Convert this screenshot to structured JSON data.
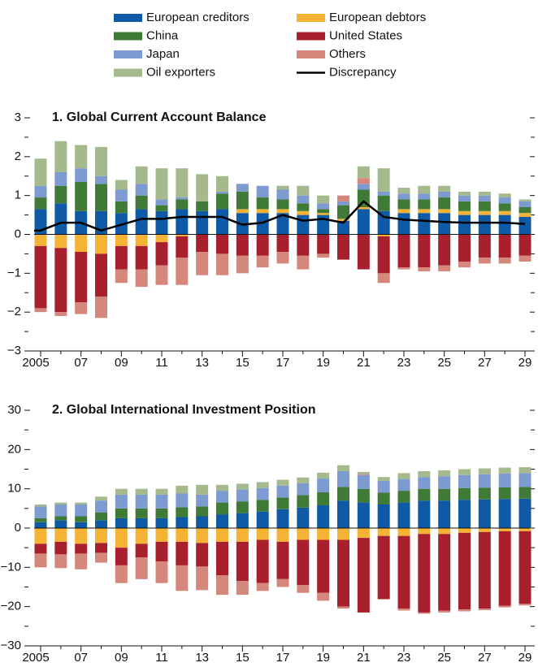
{
  "chart_data": [
    {
      "type": "bar",
      "stacked": true,
      "title": "1. Global Current Account Balance",
      "categories": [
        "2005",
        null,
        "07",
        null,
        "09",
        null,
        "11",
        null,
        "13",
        null,
        "15",
        null,
        "17",
        null,
        "19",
        null,
        "21",
        null,
        "23",
        null,
        "25",
        null,
        "27",
        null,
        "29"
      ],
      "ylim": [
        -3,
        3
      ],
      "yticks": [
        {
          "value": -3,
          "label": "−3"
        },
        {
          "value": -2,
          "label": "−2"
        },
        {
          "value": -1,
          "label": "−1"
        },
        0,
        1,
        2,
        3
      ],
      "series": [
        {
          "name": "European creditors",
          "color": "#0f5aa6",
          "values": [
            0.65,
            0.8,
            0.6,
            0.6,
            0.55,
            0.65,
            0.6,
            0.65,
            0.6,
            0.65,
            0.55,
            0.55,
            0.55,
            0.5,
            0.5,
            0.35,
            0.65,
            0.6,
            0.55,
            0.55,
            0.55,
            0.5,
            0.5,
            0.5,
            0.45
          ]
        },
        {
          "name": "European debtors",
          "color": "#f5b335",
          "values": [
            -0.3,
            -0.35,
            -0.45,
            -0.5,
            -0.3,
            -0.3,
            -0.2,
            -0.05,
            0,
            0,
            0.1,
            0.1,
            0.1,
            0.1,
            0.05,
            0.05,
            0.05,
            -0.05,
            0.1,
            0.1,
            0.1,
            0.1,
            0.1,
            0.1,
            0.1
          ]
        },
        {
          "name": "China",
          "color": "#3f7a36",
          "values": [
            0.3,
            0.45,
            0.75,
            0.7,
            0.3,
            0.35,
            0.15,
            0.25,
            0.25,
            0.4,
            0.45,
            0.3,
            0.25,
            0.2,
            0.1,
            0.35,
            0.45,
            0.4,
            0.25,
            0.25,
            0.3,
            0.25,
            0.25,
            0.2,
            0.15
          ]
        },
        {
          "name": "United States",
          "color": "#a8202e",
          "values": [
            -1.6,
            -1.65,
            -1.3,
            -1.1,
            -0.6,
            -0.6,
            -0.6,
            -0.55,
            -0.45,
            -0.5,
            -0.55,
            -0.55,
            -0.45,
            -0.55,
            -0.5,
            -0.65,
            -0.9,
            -0.95,
            -0.85,
            -0.85,
            -0.8,
            -0.7,
            -0.6,
            -0.6,
            -0.55
          ]
        },
        {
          "name": "Japan",
          "color": "#7d9ad1",
          "values": [
            0.3,
            0.35,
            0.35,
            0.2,
            0.3,
            0.3,
            0.15,
            0.05,
            0,
            0.05,
            0.2,
            0.3,
            0.25,
            0.2,
            0.15,
            0.1,
            0.15,
            0.1,
            0.15,
            0.15,
            0.15,
            0.15,
            0.15,
            0.15,
            0.15
          ]
        },
        {
          "name": "Others",
          "color": "#d4877a",
          "values": [
            -0.1,
            -0.1,
            -0.3,
            -0.55,
            -0.35,
            -0.45,
            -0.5,
            -0.7,
            -0.6,
            -0.55,
            -0.45,
            -0.3,
            -0.3,
            -0.35,
            -0.1,
            0.15,
            0.15,
            -0.25,
            -0.05,
            -0.1,
            -0.15,
            -0.15,
            -0.15,
            -0.15,
            -0.15
          ]
        },
        {
          "name": "Oil exporters",
          "color": "#a4b98c",
          "values": [
            0.7,
            0.8,
            0.6,
            0.75,
            0.25,
            0.45,
            0.8,
            0.75,
            0.7,
            0.4,
            0,
            0,
            0.1,
            0.25,
            0.2,
            0,
            0.3,
            0.6,
            0.15,
            0.2,
            0.15,
            0.1,
            0.1,
            0.1,
            0.05
          ]
        },
        {
          "name": "Discrepancy",
          "color": "#000000",
          "type": "line",
          "values": [
            0.1,
            0.3,
            0.3,
            0.1,
            0.25,
            0.4,
            0.4,
            0.45,
            0.45,
            0.45,
            0.25,
            0.3,
            0.5,
            0.35,
            0.4,
            0.3,
            0.85,
            0.45,
            0.38,
            0.35,
            0.32,
            0.3,
            0.3,
            0.3,
            0.27
          ]
        }
      ]
    },
    {
      "type": "bar",
      "stacked": true,
      "title": "2. Global International Investment Position",
      "categories": [
        "2005",
        null,
        "07",
        null,
        "09",
        null,
        "11",
        null,
        "13",
        null,
        "15",
        null,
        "17",
        null,
        "19",
        null,
        "21",
        null,
        "23",
        null,
        "25",
        null,
        "27",
        null,
        "29"
      ],
      "ylim": [
        -30,
        30
      ],
      "yticks": [
        {
          "value": -30,
          "label": "−30"
        },
        {
          "value": -20,
          "label": "−20"
        },
        {
          "value": -10,
          "label": "−10"
        },
        0,
        10,
        20,
        30
      ],
      "series": [
        {
          "color": "#0f5aa6",
          "values": [
            1.5,
            2,
            1.5,
            2,
            2.5,
            2.5,
            2.5,
            2.8,
            3,
            3.5,
            3.8,
            4.2,
            4.8,
            5.2,
            5.8,
            7,
            6.5,
            6,
            6.5,
            7,
            7,
            7.2,
            7.3,
            7.4,
            7.5
          ]
        },
        {
          "color": "#f5b335",
          "values": [
            -4,
            -3.5,
            -4,
            -3.8,
            -5,
            -4,
            -3.5,
            -3.5,
            -3.8,
            -3.5,
            -3.5,
            -3,
            -3.5,
            -3,
            -3,
            -3,
            -2.5,
            -2,
            -2,
            -1.5,
            -1.5,
            -1.2,
            -1,
            -0.8,
            -0.8
          ]
        },
        {
          "color": "#3f7a36",
          "values": [
            1,
            1,
            1.5,
            2,
            2.5,
            2.5,
            2.5,
            2.5,
            2.5,
            3,
            3,
            3,
            3,
            3.2,
            3.3,
            3.5,
            3.5,
            3,
            3,
            3,
            3,
            3,
            3,
            3,
            3
          ]
        },
        {
          "color": "#a8202e",
          "values": [
            -2.5,
            -3.2,
            -2.5,
            -2.5,
            -4.5,
            -3.5,
            -5,
            -6,
            -6,
            -8.5,
            -10,
            -11,
            -9.5,
            -11.5,
            -13.5,
            -17,
            -19,
            -16,
            -18.5,
            -20,
            -19.5,
            -19.5,
            -19.5,
            -19,
            -18.5
          ]
        },
        {
          "color": "#7d9ad1",
          "values": [
            3,
            3,
            3,
            3,
            3.5,
            3.5,
            3.5,
            3.5,
            3,
            3,
            3,
            3,
            3,
            3,
            3.5,
            4,
            3.5,
            3,
            3,
            3,
            3.2,
            3.3,
            3.4,
            3.5,
            3.5
          ]
        },
        {
          "color": "#d4877a",
          "values": [
            -3.5,
            -3.5,
            -4,
            -2.5,
            -4.5,
            -5.5,
            -5.5,
            -6.5,
            -6,
            -5,
            -3.5,
            -2,
            -2,
            -2,
            -2,
            -0.5,
            0.3,
            -0.2,
            -0.5,
            -0.3,
            -0.5,
            -0.5,
            -0.4,
            -0.4,
            -0.4
          ]
        },
        {
          "color": "#a4b98c",
          "values": [
            0.5,
            0.5,
            0.5,
            1,
            1.5,
            1.5,
            1.5,
            2,
            2.5,
            1.5,
            1.5,
            1.5,
            1.5,
            1.5,
            1.5,
            1.5,
            0.5,
            1,
            1.5,
            1.5,
            1.5,
            1.5,
            1.5,
            1.5,
            1.5
          ]
        }
      ]
    }
  ]
}
